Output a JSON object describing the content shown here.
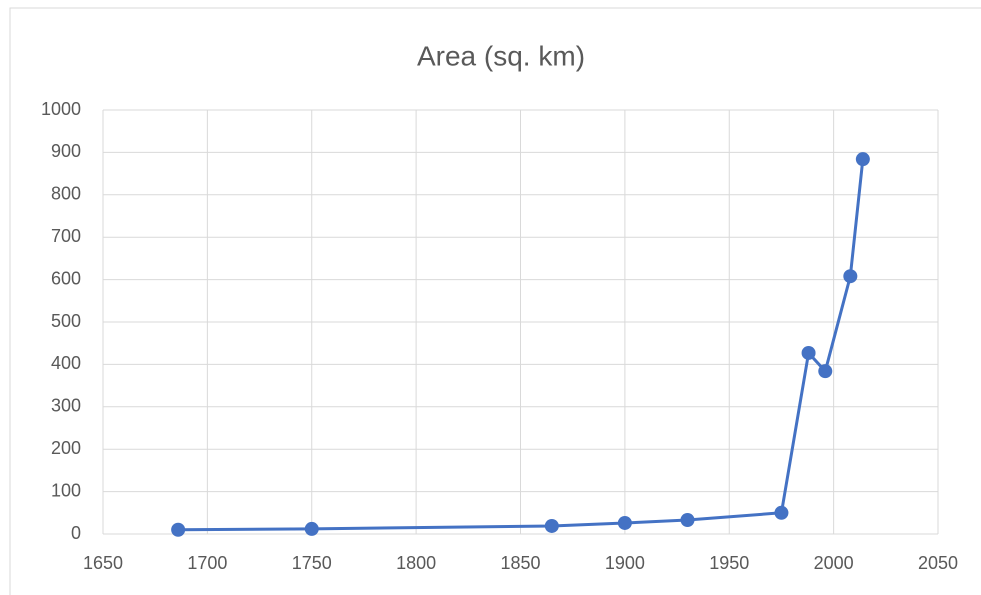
{
  "chart_data": {
    "type": "line",
    "title": "Area (sq. km)",
    "x": [
      1686,
      1750,
      1865,
      1900,
      1930,
      1975,
      1988,
      1996,
      2008,
      2014
    ],
    "series": [
      {
        "color": "#4472c4",
        "values": [
          10,
          12,
          19,
          26,
          33,
          50,
          427,
          384,
          608,
          884
        ]
      }
    ],
    "xlim": [
      1650,
      2050
    ],
    "xticks": [
      1650,
      1700,
      1750,
      1800,
      1850,
      1900,
      1950,
      2000,
      2050
    ],
    "ylim": [
      0,
      1000
    ],
    "yticks": [
      0,
      100,
      200,
      300,
      400,
      500,
      600,
      700,
      800,
      900,
      1000
    ],
    "grid": true
  }
}
